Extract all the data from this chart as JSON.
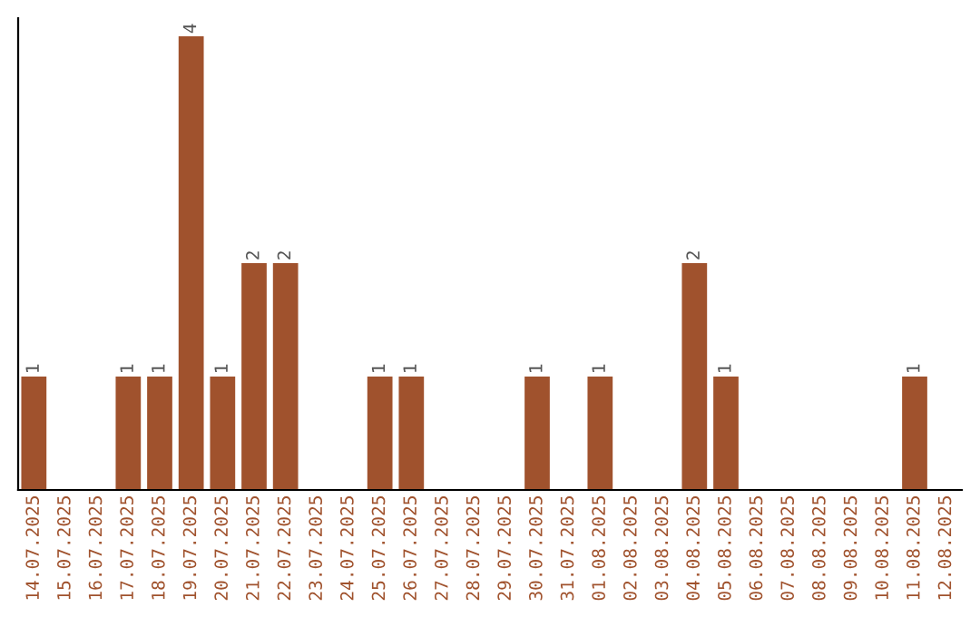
{
  "chart_data": {
    "type": "bar",
    "categories": [
      "14.07.2025",
      "15.07.2025",
      "16.07.2025",
      "17.07.2025",
      "18.07.2025",
      "19.07.2025",
      "20.07.2025",
      "21.07.2025",
      "22.07.2025",
      "23.07.2025",
      "24.07.2025",
      "25.07.2025",
      "26.07.2025",
      "27.07.2025",
      "28.07.2025",
      "29.07.2025",
      "30.07.2025",
      "31.07.2025",
      "01.08.2025",
      "02.08.2025",
      "03.08.2025",
      "04.08.2025",
      "05.08.2025",
      "06.08.2025",
      "07.08.2025",
      "08.08.2025",
      "09.08.2025",
      "10.08.2025",
      "11.08.2025",
      "12.08.2025"
    ],
    "values": [
      1,
      0,
      0,
      1,
      1,
      4,
      1,
      2,
      2,
      0,
      0,
      1,
      1,
      0,
      0,
      0,
      1,
      0,
      1,
      0,
      0,
      2,
      1,
      0,
      0,
      0,
      0,
      0,
      1,
      0
    ],
    "value_labels": [
      "1",
      null,
      null,
      "1",
      "1",
      "4",
      "1",
      "2",
      "2",
      null,
      null,
      "1",
      "1",
      null,
      null,
      null,
      "1",
      null,
      "1",
      null,
      null,
      "2",
      "1",
      null,
      null,
      null,
      null,
      null,
      "1",
      null
    ],
    "color": "#a0522d",
    "grid": false,
    "legend": false
  }
}
